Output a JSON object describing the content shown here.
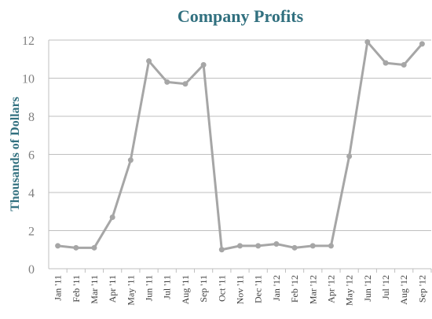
{
  "chart_data": {
    "type": "line",
    "title": "Company Profits",
    "y_label": "Thousands of Dollars",
    "categories": [
      "Jan '11",
      "Feb '11",
      "Mar '11",
      "Apr '11",
      "May '11",
      "Jun '11",
      "Jul '11",
      "Aug '11",
      "Sep '11",
      "Oct '11",
      "Nov '11",
      "Dec '11",
      "Jan '12",
      "Feb '12",
      "Mar '12",
      "Apr '12",
      "May '12",
      "Jun '12",
      "Jul '12",
      "Aug '12",
      "Sep '12"
    ],
    "series": [
      {
        "name": "Profits",
        "color": "#a6a6a6",
        "values": [
          1.2,
          1.1,
          1.1,
          2.7,
          5.7,
          10.9,
          9.8,
          9.7,
          10.7,
          1.0,
          1.2,
          1.2,
          1.3,
          1.1,
          1.2,
          1.2,
          5.9,
          11.9,
          10.8,
          10.7,
          11.8
        ]
      }
    ],
    "ylim": [
      0,
      12
    ],
    "yticks": [
      0,
      2,
      4,
      6,
      8,
      10,
      12
    ],
    "grid": true
  }
}
